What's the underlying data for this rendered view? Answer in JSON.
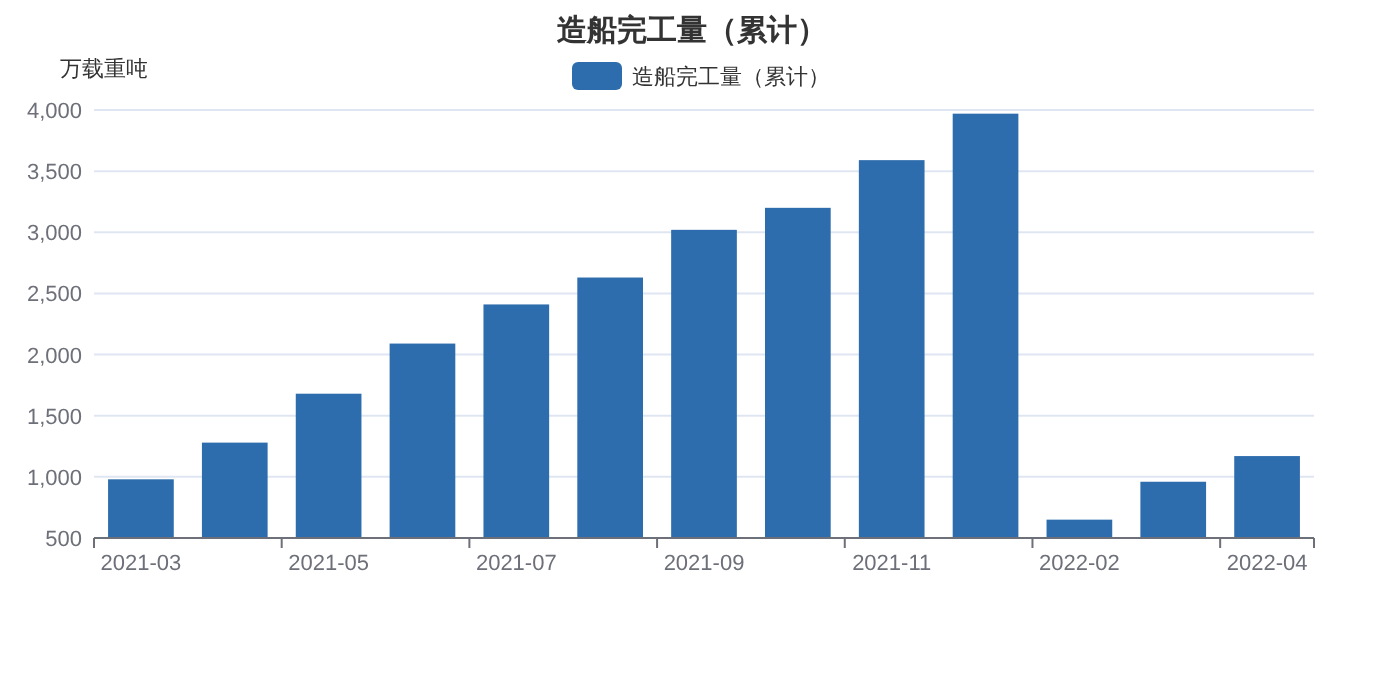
{
  "chart_data": {
    "type": "bar",
    "title": "造船完工量（累计）",
    "ylabel": "万载重吨",
    "categories": [
      "2021-03",
      null,
      "2021-05",
      null,
      "2021-07",
      null,
      "2021-09",
      null,
      "2021-11",
      null,
      "2022-02",
      null,
      "2022-04"
    ],
    "series": [
      {
        "name": "造船完工量（累计）",
        "color": "#2e6dad",
        "values": [
          980,
          1280,
          1680,
          2090,
          2410,
          2630,
          3020,
          3200,
          3590,
          3970,
          650,
          960,
          1170
        ]
      }
    ],
    "ylim": [
      500,
      4000
    ],
    "yticks": [
      {
        "value": 500,
        "label": "500"
      },
      {
        "value": 1000,
        "label": "1,000"
      },
      {
        "value": 1500,
        "label": "1,500"
      },
      {
        "value": 2000,
        "label": "2,000"
      },
      {
        "value": 2500,
        "label": "2,500"
      },
      {
        "value": 3000,
        "label": "3,000"
      },
      {
        "value": 3500,
        "label": "3,500"
      },
      {
        "value": 4000,
        "label": "4,000"
      }
    ],
    "grid": "y",
    "legend": "top"
  }
}
